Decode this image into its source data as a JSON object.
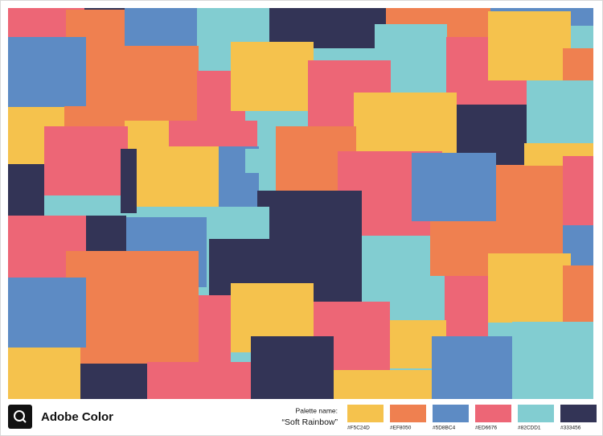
{
  "brand": "Adobe Color",
  "palette": {
    "label": "Palette name:",
    "name": "“Soft Rainbow”",
    "swatches": [
      {
        "hex": "#F5C24D"
      },
      {
        "hex": "#EF8050"
      },
      {
        "hex": "#5D8BC4"
      },
      {
        "hex": "#ED6676"
      },
      {
        "hex": "#82CDD1"
      },
      {
        "hex": "#333456"
      }
    ]
  }
}
